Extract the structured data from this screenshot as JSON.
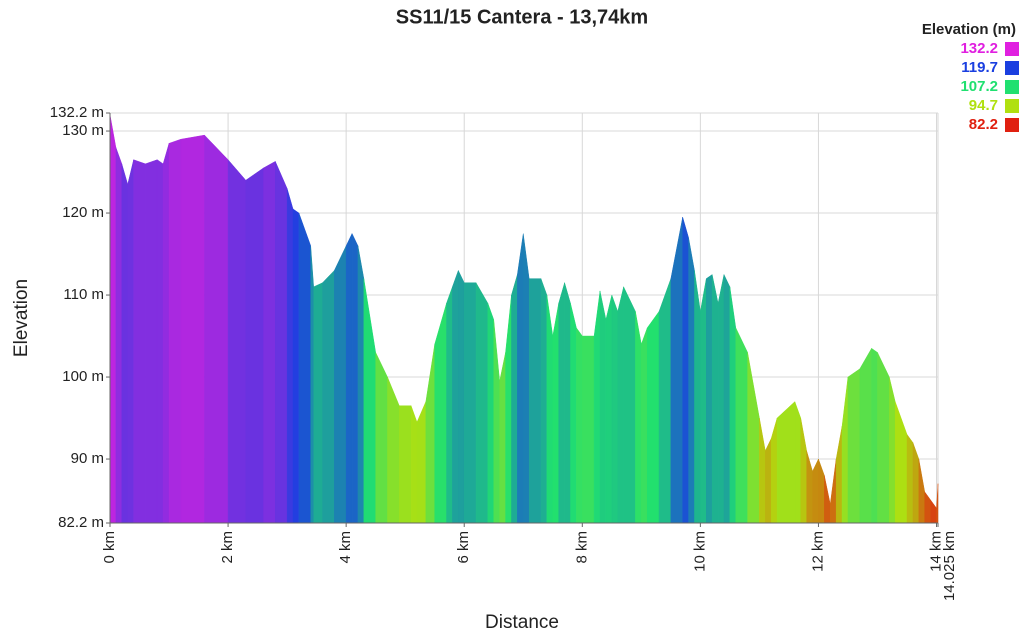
{
  "chart_data": {
    "type": "area",
    "title": "SS11/15 Cantera - 13,74km",
    "xlabel": "Distance",
    "ylabel": "Elevation",
    "legend": {
      "title": "Elevation (m)",
      "position": "top-right",
      "items": [
        {
          "value": 132.2,
          "color": "#e020e0"
        },
        {
          "value": 119.7,
          "color": "#1a3fe0"
        },
        {
          "value": 107.2,
          "color": "#20e070"
        },
        {
          "value": 94.7,
          "color": "#b0e010"
        },
        {
          "value": 82.2,
          "color": "#e02010"
        }
      ]
    },
    "grid": true,
    "xlim": [
      0,
      14.025
    ],
    "xticks": [
      {
        "value": 0,
        "label": "0 km"
      },
      {
        "value": 2,
        "label": "2 km"
      },
      {
        "value": 4,
        "label": "4 km"
      },
      {
        "value": 6,
        "label": "6 km"
      },
      {
        "value": 8,
        "label": "8 km"
      },
      {
        "value": 10,
        "label": "10 km"
      },
      {
        "value": 12,
        "label": "12 km"
      },
      {
        "value": 14,
        "label": "14 km"
      },
      {
        "value": 14.025,
        "label": "14.025 km"
      }
    ],
    "ylim": [
      82.2,
      132.2
    ],
    "yticks": [
      {
        "value": 82.2,
        "label": "82.2 m"
      },
      {
        "value": 90,
        "label": "90 m"
      },
      {
        "value": 100,
        "label": "100 m"
      },
      {
        "value": 110,
        "label": "110 m"
      },
      {
        "value": 120,
        "label": "120 m"
      },
      {
        "value": 130,
        "label": "130 m"
      },
      {
        "value": 132.2,
        "label": "132.2 m"
      }
    ],
    "x": [
      0,
      0.1,
      0.2,
      0.3,
      0.4,
      0.6,
      0.8,
      0.9,
      1.0,
      1.2,
      1.6,
      2.0,
      2.3,
      2.6,
      2.8,
      3.0,
      3.1,
      3.2,
      3.4,
      3.45,
      3.6,
      3.8,
      4.0,
      4.1,
      4.2,
      4.3,
      4.5,
      4.7,
      4.9,
      5.1,
      5.2,
      5.35,
      5.5,
      5.7,
      5.8,
      5.9,
      6.0,
      6.2,
      6.4,
      6.5,
      6.6,
      6.7,
      6.8,
      6.9,
      7.0,
      7.1,
      7.3,
      7.4,
      7.5,
      7.6,
      7.7,
      7.8,
      7.9,
      8.0,
      8.2,
      8.3,
      8.4,
      8.5,
      8.6,
      8.7,
      8.9,
      9.0,
      9.1,
      9.3,
      9.5,
      9.7,
      9.8,
      9.9,
      10.0,
      10.1,
      10.2,
      10.3,
      10.4,
      10.5,
      10.6,
      10.8,
      11.0,
      11.1,
      11.2,
      11.3,
      11.6,
      11.7,
      11.8,
      11.9,
      12.0,
      12.1,
      12.2,
      12.3,
      12.4,
      12.5,
      12.7,
      12.9,
      13.0,
      13.2,
      13.3,
      13.5,
      13.6,
      13.7,
      13.8,
      13.9,
      14.0,
      14.025
    ],
    "values": [
      132,
      128,
      126,
      123.5,
      126.5,
      126,
      126.5,
      126,
      128.5,
      129,
      129.5,
      126.5,
      124,
      125.5,
      126.3,
      123,
      120.5,
      120,
      116,
      111,
      111.5,
      113,
      116,
      117.5,
      116,
      112,
      103,
      100,
      96.5,
      96.5,
      94.5,
      97,
      104,
      109,
      111,
      113,
      111.5,
      111.5,
      109,
      107,
      99.5,
      103,
      110,
      112.5,
      117.5,
      112,
      112,
      110,
      105,
      109,
      111.5,
      109,
      106,
      105,
      105,
      110.5,
      107,
      110,
      108,
      111,
      108,
      104,
      106,
      108,
      112,
      119.5,
      117,
      113,
      108,
      112,
      112.5,
      109,
      112.5,
      111,
      106,
      103,
      95,
      91,
      92.5,
      95,
      97,
      95,
      91,
      88.5,
      90,
      88,
      84.5,
      90,
      94,
      100,
      101,
      103.5,
      103,
      100,
      97,
      93,
      92,
      90,
      86,
      85,
      84,
      87
    ]
  }
}
